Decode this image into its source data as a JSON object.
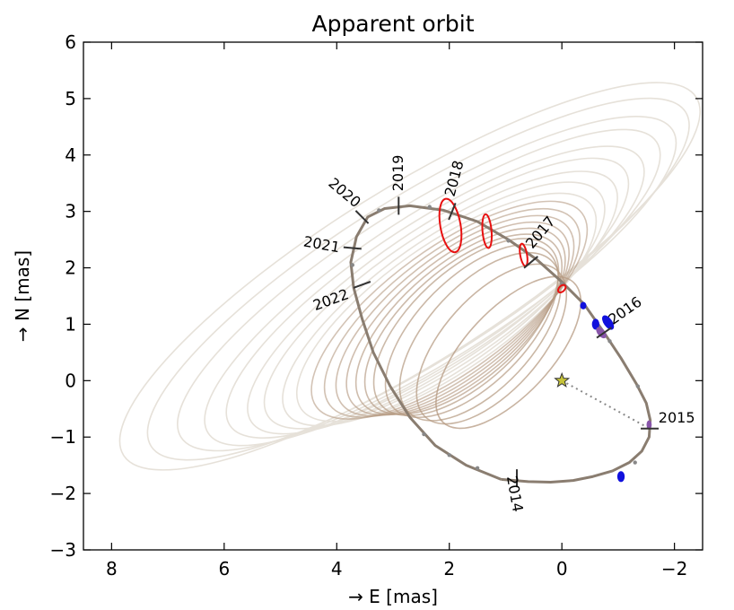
{
  "chart_data": {
    "type": "scatter",
    "title": "Apparent orbit",
    "xlabel": "→ E [mas]",
    "ylabel": "→ N [mas]",
    "xlim": [
      8.5,
      -2.5
    ],
    "ylim": [
      -3,
      6
    ],
    "x_ticks": [
      8,
      6,
      4,
      2,
      0,
      -2
    ],
    "y_ticks": [
      6,
      5,
      4,
      3,
      2,
      1,
      0,
      -1,
      -2,
      -3
    ],
    "grid": false,
    "star": {
      "x": 0,
      "y": 0
    },
    "colors": {
      "fan": "#b59a82",
      "fan_outer": "#e6e1d9",
      "best_orbit": "#8a7d70",
      "tick_dark": "#333333",
      "tick_light": "#888888",
      "ellipse_red": "#e81010",
      "ellipse_blue": "#1111dd",
      "ellipse_purple": "#8855aa",
      "star": "#c7c43a",
      "sep_line": "#888888"
    },
    "fan_orbits": [
      {
        "cx": 2.7,
        "cy": 1.85,
        "a": 6.0,
        "b": 1.55,
        "angle": 32
      },
      {
        "cx": 2.55,
        "cy": 1.8,
        "a": 5.6,
        "b": 1.45,
        "angle": 32
      },
      {
        "cx": 2.4,
        "cy": 1.72,
        "a": 5.15,
        "b": 1.38,
        "angle": 32
      },
      {
        "cx": 2.3,
        "cy": 1.65,
        "a": 4.75,
        "b": 1.3,
        "angle": 33
      },
      {
        "cx": 2.25,
        "cy": 1.57,
        "a": 4.35,
        "b": 1.25,
        "angle": 33
      },
      {
        "cx": 2.2,
        "cy": 1.5,
        "a": 4.0,
        "b": 1.2,
        "angle": 34
      },
      {
        "cx": 2.15,
        "cy": 1.43,
        "a": 3.7,
        "b": 1.17,
        "angle": 34
      },
      {
        "cx": 2.1,
        "cy": 1.36,
        "a": 3.4,
        "b": 1.14,
        "angle": 35
      },
      {
        "cx": 2.05,
        "cy": 1.3,
        "a": 3.15,
        "b": 1.12,
        "angle": 35
      },
      {
        "cx": 2.0,
        "cy": 1.25,
        "a": 2.92,
        "b": 1.1,
        "angle": 36
      },
      {
        "cx": 1.95,
        "cy": 1.2,
        "a": 2.72,
        "b": 1.08,
        "angle": 37
      },
      {
        "cx": 1.9,
        "cy": 1.15,
        "a": 2.55,
        "b": 1.06,
        "angle": 38
      },
      {
        "cx": 1.85,
        "cy": 1.1,
        "a": 2.4,
        "b": 1.04,
        "angle": 39
      },
      {
        "cx": 1.8,
        "cy": 1.05,
        "a": 2.27,
        "b": 1.02,
        "angle": 40
      },
      {
        "cx": 1.75,
        "cy": 1.0,
        "a": 2.15,
        "b": 1.0,
        "angle": 41
      },
      {
        "cx": 1.7,
        "cy": 0.95,
        "a": 2.05,
        "b": 0.98,
        "angle": 43
      },
      {
        "cx": 1.6,
        "cy": 0.88,
        "a": 1.95,
        "b": 0.95,
        "angle": 45
      },
      {
        "cx": 1.45,
        "cy": 0.78,
        "a": 1.85,
        "b": 0.92,
        "angle": 47
      },
      {
        "cx": 1.25,
        "cy": 0.65,
        "a": 1.75,
        "b": 0.85,
        "angle": 48
      },
      {
        "cx": 0.95,
        "cy": 0.5,
        "a": 1.7,
        "b": 0.76,
        "angle": 47
      }
    ],
    "best_orbit": {
      "points": [
        [
          1.08,
          -1.75
        ],
        [
          0.6,
          -1.79
        ],
        [
          0.2,
          -1.8
        ],
        [
          -0.2,
          -1.77
        ],
        [
          -0.55,
          -1.7
        ],
        [
          -0.9,
          -1.6
        ],
        [
          -1.2,
          -1.45
        ],
        [
          -1.42,
          -1.25
        ],
        [
          -1.55,
          -1.0
        ],
        [
          -1.57,
          -0.7
        ],
        [
          -1.5,
          -0.4
        ],
        [
          -1.32,
          -0.05
        ],
        [
          -1.05,
          0.4
        ],
        [
          -0.75,
          0.85
        ],
        [
          -0.4,
          1.35
        ],
        [
          0.0,
          1.75
        ],
        [
          0.45,
          2.15
        ],
        [
          0.95,
          2.5
        ],
        [
          1.5,
          2.82
        ],
        [
          2.1,
          3.02
        ],
        [
          2.7,
          3.1
        ],
        [
          3.15,
          3.05
        ],
        [
          3.45,
          2.9
        ],
        [
          3.65,
          2.55
        ],
        [
          3.75,
          2.1
        ],
        [
          3.7,
          1.65
        ],
        [
          3.55,
          1.1
        ],
        [
          3.35,
          0.5
        ],
        [
          3.05,
          -0.1
        ],
        [
          2.7,
          -0.65
        ],
        [
          2.25,
          -1.15
        ],
        [
          1.7,
          -1.5
        ],
        [
          1.08,
          -1.75
        ]
      ]
    },
    "epoch_ticks": [
      {
        "label": "2014",
        "x": 0.8,
        "y": -1.73,
        "angle": 90,
        "dx": 0.05,
        "dy": -0.28,
        "rot": 80
      },
      {
        "label": "2015",
        "x": -1.56,
        "y": -0.85,
        "angle": 0,
        "dx": -0.48,
        "dy": 0.18,
        "rot": 0
      },
      {
        "label": "2016",
        "x": -0.75,
        "y": 0.85,
        "angle": 35,
        "dx": -0.38,
        "dy": 0.38,
        "rot": -35
      },
      {
        "label": "2017",
        "x": 0.55,
        "y": 2.1,
        "angle": 40,
        "dx": -0.18,
        "dy": 0.52,
        "rot": -50
      },
      {
        "label": "2018",
        "x": 1.95,
        "y": 3.0,
        "angle": 68,
        "dx": -0.05,
        "dy": 0.58,
        "rot": -75
      },
      {
        "label": "2019",
        "x": 2.9,
        "y": 3.1,
        "angle": 90,
        "dx": 0.0,
        "dy": 0.58,
        "rot": -90
      },
      {
        "label": "2020",
        "x": 3.55,
        "y": 2.9,
        "angle": 135,
        "dx": 0.32,
        "dy": 0.42,
        "rot": 40
      },
      {
        "label": "2021",
        "x": 3.72,
        "y": 2.35,
        "angle": 175,
        "dx": 0.55,
        "dy": 0.05,
        "rot": 10
      },
      {
        "label": "2022",
        "x": 3.55,
        "y": 1.7,
        "angle": 200,
        "dx": 0.55,
        "dy": -0.28,
        "rot": -20
      }
    ],
    "minor_ticks": [
      [
        1.5,
        -1.55
      ],
      [
        2.0,
        -1.32
      ],
      [
        2.45,
        -0.95
      ],
      [
        -1.3,
        -1.45
      ],
      [
        -1.35,
        -0.1
      ],
      [
        -0.85,
        0.7
      ],
      [
        0.0,
        1.72
      ],
      [
        0.95,
        2.48
      ],
      [
        2.35,
        3.08
      ],
      [
        3.25,
        3.02
      ],
      [
        3.72,
        2.05
      ]
    ],
    "measurements": [
      {
        "x": 1.98,
        "y": 2.75,
        "rx": 0.18,
        "ry": 0.48,
        "angle": 10,
        "color": "red"
      },
      {
        "x": 1.33,
        "y": 2.65,
        "rx": 0.08,
        "ry": 0.3,
        "angle": 5,
        "color": "red"
      },
      {
        "x": 0.68,
        "y": 2.23,
        "rx": 0.06,
        "ry": 0.2,
        "angle": 10,
        "color": "red"
      },
      {
        "x": 0.0,
        "y": 1.63,
        "rx": 0.08,
        "ry": 0.05,
        "angle": 45,
        "color": "red"
      },
      {
        "x": -0.38,
        "y": 1.33,
        "rx": 0.04,
        "ry": 0.05,
        "angle": 0,
        "color": "blue"
      },
      {
        "x": -0.6,
        "y": 1.0,
        "rx": 0.05,
        "ry": 0.08,
        "angle": 0,
        "color": "blue"
      },
      {
        "x": -0.82,
        "y": 1.03,
        "rx": 0.06,
        "ry": 0.13,
        "angle": 35,
        "color": "blue"
      },
      {
        "x": -0.7,
        "y": 0.85,
        "rx": 0.05,
        "ry": 0.1,
        "angle": 40,
        "color": "purple"
      },
      {
        "x": -1.05,
        "y": -1.7,
        "rx": 0.05,
        "ry": 0.08,
        "angle": 0,
        "color": "blue"
      },
      {
        "x": -1.55,
        "y": -0.78,
        "rx": 0.03,
        "ry": 0.06,
        "angle": 0,
        "color": "purple"
      }
    ]
  }
}
